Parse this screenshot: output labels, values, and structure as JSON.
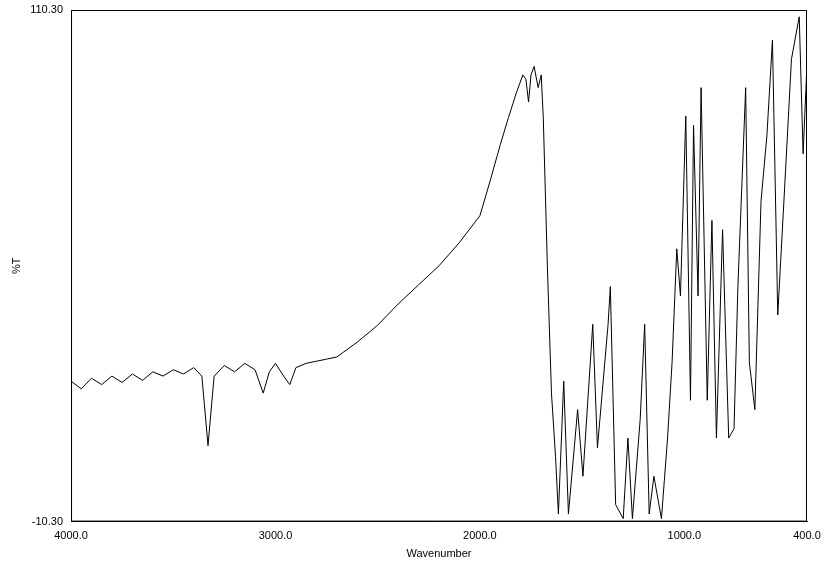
{
  "chart_data": {
    "type": "line",
    "x_label": "Wavenumber",
    "y_label": "%T",
    "xlim": [
      4000,
      400
    ],
    "xticks": [
      {
        "value": 4000,
        "label": "4000.0"
      },
      {
        "value": 3000,
        "label": "3000.0"
      },
      {
        "value": 2000,
        "label": "2000.0"
      },
      {
        "value": 1000,
        "label": "1000.0"
      },
      {
        "value": 400,
        "label": "400.0"
      }
    ],
    "ylim": [
      -10.3,
      110.3
    ],
    "yticks": [
      {
        "value": -10.3,
        "label": "-10.30"
      },
      {
        "value": 110.3,
        "label": "110.30"
      }
    ],
    "grid": false,
    "color": "#000000",
    "x": [
      4000,
      3950,
      3900,
      3850,
      3800,
      3750,
      3700,
      3650,
      3600,
      3550,
      3500,
      3450,
      3400,
      3360,
      3330,
      3300,
      3250,
      3200,
      3150,
      3100,
      3060,
      3030,
      3000,
      2960,
      2930,
      2900,
      2850,
      2800,
      2750,
      2700,
      2600,
      2500,
      2400,
      2300,
      2200,
      2100,
      2000,
      1950,
      1900,
      1860,
      1820,
      1790,
      1775,
      1762,
      1750,
      1735,
      1715,
      1700,
      1690,
      1670,
      1650,
      1630,
      1616,
      1590,
      1567,
      1522,
      1496,
      1448,
      1425,
      1373,
      1362,
      1336,
      1299,
      1276,
      1254,
      1216,
      1194,
      1172,
      1149,
      1112,
      1082,
      1060,
      1037,
      1019,
      993,
      970,
      955,
      933,
      918,
      888,
      865,
      843,
      813,
      783,
      757,
      738,
      700,
      682,
      655,
      625,
      596,
      569,
      543,
      513,
      476,
      438,
      419,
      401
    ],
    "values": [
      22.8,
      21,
      23.5,
      22,
      24,
      22.5,
      24.5,
      23,
      25,
      24,
      25.5,
      24.5,
      26,
      24,
      7.6,
      24,
      26.5,
      25,
      27,
      25.5,
      20,
      25,
      27,
      24,
      22,
      26,
      27,
      27.5,
      28,
      28.5,
      32,
      36,
      41,
      45.5,
      50,
      55.5,
      61.8,
      70,
      78.6,
      85,
      91,
      95,
      94,
      88.6,
      95,
      97,
      92,
      95,
      85,
      50,
      20,
      5,
      -8.5,
      22.8,
      -8.5,
      16.1,
      0.4,
      36.2,
      7.1,
      36.2,
      45.1,
      -6.3,
      -9.6,
      9.4,
      -9.6,
      13.8,
      36.2,
      -8.5,
      0.4,
      -9.6,
      9.4,
      27.2,
      54.0,
      42.9,
      85.3,
      18.3,
      83.1,
      42.9,
      92.0,
      18.3,
      60.7,
      9.4,
      58.5,
      9.4,
      11.6,
      45.1,
      92.0,
      27.2,
      16.1,
      65.2,
      80.8,
      103.2,
      38.4,
      65.2,
      98.7,
      108.7,
      76.4,
      96.5
    ]
  }
}
